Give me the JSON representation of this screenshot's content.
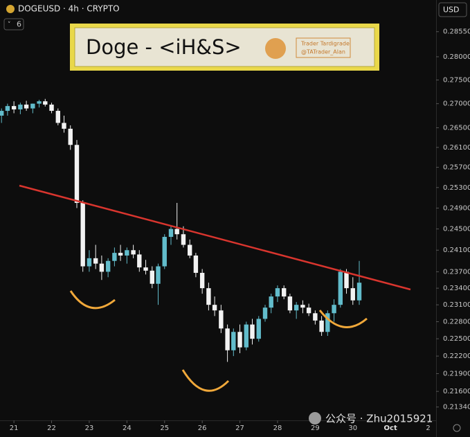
{
  "chart_data": {
    "type": "candlestick",
    "title": "DOGEUSD · 4h · CRYPTO",
    "indicator_count": 6,
    "currency": "USD",
    "annotation": "Doge - <iH&S>",
    "credits": [
      "Trader Tardigrade",
      "@TATrader_Alan"
    ],
    "watermark": "公众号 · Zhu2015921",
    "log_scale": true,
    "up_color": "#62bccb",
    "down_color": "#f2f2f2",
    "x": [
      20.67,
      20.83,
      21,
      21.17,
      21.33,
      21.5,
      21.67,
      21.83,
      22,
      22.17,
      22.33,
      22.5,
      22.67,
      22.83,
      23,
      23.17,
      23.33,
      23.5,
      23.67,
      23.83,
      24,
      24.17,
      24.33,
      24.5,
      24.67,
      24.83,
      25,
      25.17,
      25.33,
      25.5,
      25.67,
      25.83,
      26,
      26.17,
      26.33,
      26.5,
      26.67,
      26.83,
      27,
      27.17,
      27.33,
      27.5,
      27.67,
      27.83,
      28,
      28.17,
      28.33,
      28.5,
      28.67,
      28.83,
      29,
      29.17,
      29.33,
      29.5,
      29.67,
      29.83,
      30,
      30.17
    ],
    "open": [
      0.2675,
      0.2685,
      0.2695,
      0.2688,
      0.2698,
      0.269,
      0.27,
      0.2705,
      0.2698,
      0.2685,
      0.266,
      0.2648,
      0.2615,
      0.25,
      0.238,
      0.2395,
      0.2385,
      0.237,
      0.239,
      0.2405,
      0.24,
      0.241,
      0.2402,
      0.2378,
      0.2372,
      0.2348,
      0.238,
      0.2435,
      0.245,
      0.244,
      0.242,
      0.24,
      0.2368,
      0.234,
      0.231,
      0.23,
      0.2268,
      0.223,
      0.2262,
      0.2235,
      0.2275,
      0.225,
      0.2285,
      0.2305,
      0.2325,
      0.234,
      0.2325,
      0.23,
      0.231,
      0.2305,
      0.2295,
      0.2282,
      0.2262,
      0.2295,
      0.231,
      0.237,
      0.234,
      0.2318
    ],
    "high": [
      0.269,
      0.27,
      0.2705,
      0.2702,
      0.2706,
      0.27,
      0.2708,
      0.271,
      0.2702,
      0.269,
      0.2675,
      0.2655,
      0.2625,
      0.2505,
      0.241,
      0.242,
      0.24,
      0.2395,
      0.2415,
      0.242,
      0.2415,
      0.242,
      0.241,
      0.2392,
      0.238,
      0.2385,
      0.244,
      0.2455,
      0.25,
      0.2455,
      0.243,
      0.2405,
      0.2375,
      0.235,
      0.2325,
      0.231,
      0.2275,
      0.2268,
      0.2275,
      0.228,
      0.2285,
      0.229,
      0.231,
      0.233,
      0.2345,
      0.2345,
      0.233,
      0.2315,
      0.2318,
      0.2312,
      0.23,
      0.229,
      0.23,
      0.232,
      0.2375,
      0.2375,
      0.236,
      0.239
    ],
    "low": [
      0.266,
      0.2675,
      0.268,
      0.2678,
      0.2685,
      0.268,
      0.2692,
      0.2694,
      0.268,
      0.2655,
      0.264,
      0.2605,
      0.249,
      0.237,
      0.237,
      0.2375,
      0.2355,
      0.236,
      0.238,
      0.239,
      0.2385,
      0.2395,
      0.237,
      0.2365,
      0.234,
      0.231,
      0.2375,
      0.242,
      0.243,
      0.2415,
      0.2395,
      0.236,
      0.233,
      0.23,
      0.229,
      0.226,
      0.221,
      0.222,
      0.2225,
      0.223,
      0.224,
      0.2245,
      0.228,
      0.2295,
      0.2315,
      0.232,
      0.2295,
      0.2285,
      0.2295,
      0.229,
      0.2275,
      0.2255,
      0.2255,
      0.228,
      0.2305,
      0.233,
      0.231,
      0.231
    ],
    "close": [
      0.2685,
      0.2695,
      0.2688,
      0.2698,
      0.269,
      0.27,
      0.2705,
      0.2698,
      0.2685,
      0.266,
      0.2648,
      0.2615,
      0.25,
      0.238,
      0.2395,
      0.2385,
      0.237,
      0.239,
      0.2405,
      0.24,
      0.241,
      0.2402,
      0.2378,
      0.2372,
      0.2348,
      0.238,
      0.2435,
      0.245,
      0.244,
      0.242,
      0.24,
      0.2368,
      0.234,
      0.231,
      0.23,
      0.2268,
      0.223,
      0.2262,
      0.2235,
      0.2275,
      0.225,
      0.2285,
      0.2305,
      0.2325,
      0.234,
      0.2325,
      0.23,
      0.231,
      0.2305,
      0.2295,
      0.2282,
      0.2262,
      0.2295,
      0.231,
      0.237,
      0.234,
      0.2318,
      0.235
    ],
    "xlim": [
      20.63,
      32.21
    ],
    "xticks": [
      21,
      22,
      23,
      24,
      25,
      26,
      27,
      28,
      29,
      30,
      {
        "value": 31,
        "label": "Oct"
      },
      {
        "value": 32,
        "label": "2"
      }
    ],
    "ylim": [
      0.2112,
      0.2926
    ],
    "yticks": [
      {
        "value": 0.2855,
        "label": "0.28550"
      },
      {
        "value": 0.28,
        "label": "0.28000"
      },
      {
        "value": 0.275,
        "label": "0.27500"
      },
      {
        "value": 0.27,
        "label": "0.27000"
      },
      {
        "value": 0.265,
        "label": "0.26500"
      },
      {
        "value": 0.261,
        "label": "0.26100"
      },
      {
        "value": 0.257,
        "label": "0.25700"
      },
      {
        "value": 0.253,
        "label": "0.25300"
      },
      {
        "value": 0.249,
        "label": "0.24900"
      },
      {
        "value": 0.245,
        "label": "0.24500"
      },
      {
        "value": 0.241,
        "label": "0.24100"
      },
      {
        "value": 0.237,
        "label": "0.23700"
      },
      {
        "value": 0.234,
        "label": "0.23400"
      },
      {
        "value": 0.231,
        "label": "0.23100"
      },
      {
        "value": 0.228,
        "label": "0.22800"
      },
      {
        "value": 0.225,
        "label": "0.22500"
      },
      {
        "value": 0.222,
        "label": "0.22200"
      },
      {
        "value": 0.219,
        "label": "0.21900"
      },
      {
        "value": 0.216,
        "label": "0.21600"
      },
      {
        "value": 0.2134,
        "label": "0.21340"
      }
    ]
  }
}
